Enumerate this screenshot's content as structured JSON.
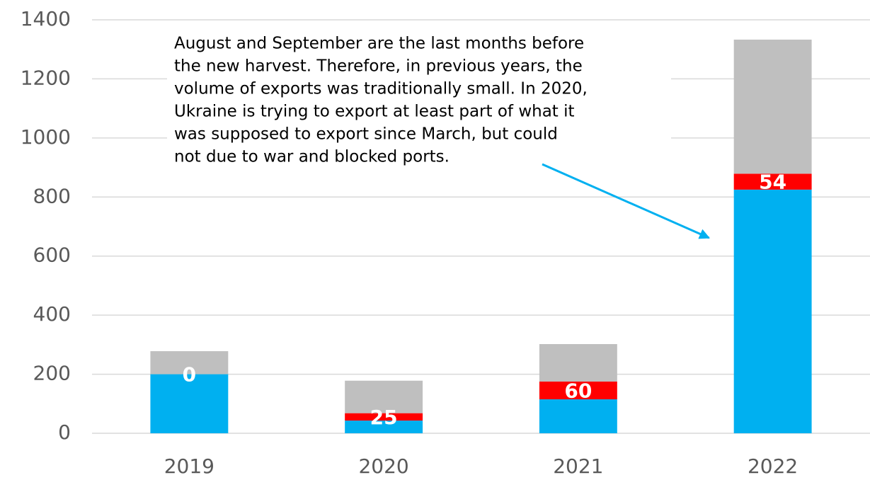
{
  "chart_data": {
    "type": "stacked_bar",
    "categories": [
      "2019",
      "2020",
      "2021",
      "2022"
    ],
    "series": [
      {
        "color": "#00b0f0",
        "values": [
          200,
          43,
          115,
          825
        ]
      },
      {
        "color": "#ff0000",
        "values": [
          0,
          25,
          60,
          54
        ]
      },
      {
        "color": "#bfbfbf",
        "values": [
          78,
          110,
          127,
          454
        ]
      }
    ],
    "data_labels_series": 1,
    "ylim": [
      0,
      1400
    ],
    "yticks": [
      0,
      200,
      400,
      600,
      800,
      1000,
      1200,
      1400
    ],
    "grid": true,
    "annotation": {
      "lines": [
        "August and September are the last months before",
        "the new harvest. Therefore, in previous years, the",
        "volume of exports was traditionally small. In 2020,",
        "Ukraine is trying to export at least part of what it",
        "was supposed to export since March, but could",
        "not due to war and blocked ports."
      ],
      "category": 3
    }
  }
}
